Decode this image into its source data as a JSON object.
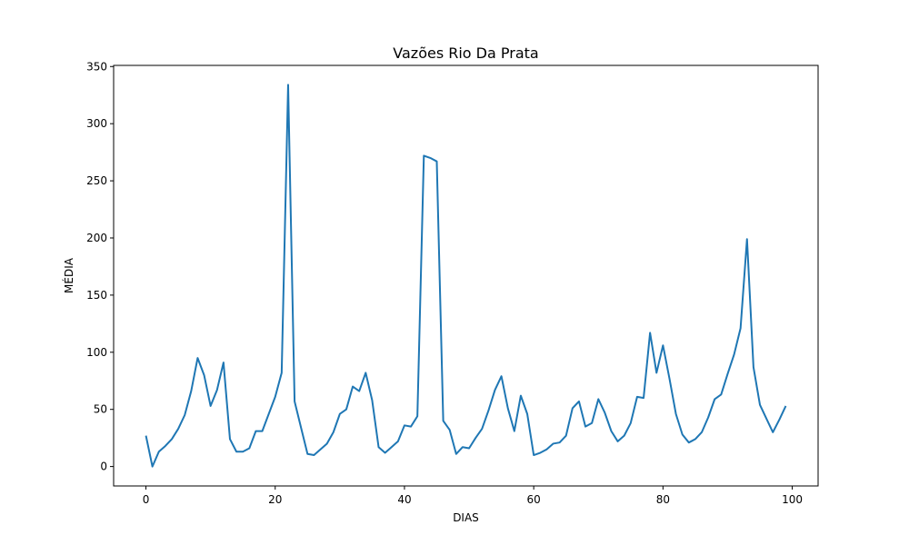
{
  "chart_data": {
    "type": "line",
    "title": "Vazões Rio Da Prata",
    "xlabel": "DIAS",
    "ylabel": "MÉDIA",
    "xlim": [
      -5,
      104
    ],
    "ylim": [
      -17,
      351
    ],
    "x_ticks": [
      0,
      20,
      40,
      60,
      80,
      100
    ],
    "y_ticks": [
      0,
      50,
      100,
      150,
      200,
      250,
      300,
      350
    ],
    "grid": false,
    "line_color": "#1f77b4",
    "series": [
      {
        "x": [
          0,
          1,
          2,
          3,
          4,
          5,
          6,
          7,
          8,
          9,
          10,
          11,
          12,
          13,
          14,
          15,
          16,
          17,
          18,
          19,
          20,
          21,
          22,
          23,
          24,
          25,
          26,
          27,
          28,
          29,
          30,
          31,
          32,
          33,
          34,
          35,
          36,
          37,
          38,
          39,
          40,
          41,
          42,
          43,
          44,
          45,
          46,
          47,
          48,
          49,
          50,
          51,
          52,
          53,
          54,
          55,
          56,
          57,
          58,
          59,
          60,
          61,
          62,
          63,
          64,
          65,
          66,
          67,
          68,
          69,
          70,
          71,
          72,
          73,
          74,
          75,
          76,
          77,
          78,
          79,
          80,
          81,
          82,
          83,
          84,
          85,
          86,
          87,
          88,
          89,
          90,
          91,
          92,
          93,
          94,
          95,
          96,
          97,
          98,
          99
        ],
        "values": [
          27,
          0,
          13,
          18,
          24,
          33,
          45,
          66,
          95,
          80,
          53,
          67,
          91,
          24,
          13,
          13,
          16,
          31,
          31,
          46,
          61,
          82,
          334,
          57,
          34,
          11,
          10,
          15,
          20,
          30,
          46,
          50,
          70,
          66,
          82,
          58,
          17,
          12,
          17,
          22,
          36,
          35,
          44,
          272,
          270,
          267,
          40,
          32,
          11,
          17,
          16,
          25,
          33,
          49,
          67,
          79,
          51,
          31,
          62,
          46,
          10,
          12,
          15,
          20,
          21,
          27,
          51,
          57,
          35,
          38,
          59,
          47,
          31,
          22,
          27,
          38,
          61,
          60,
          117,
          82,
          106,
          77,
          46,
          28,
          21,
          24,
          30,
          43,
          59,
          63,
          81,
          98,
          121,
          199,
          87,
          54,
          42,
          30,
          41,
          53
        ]
      }
    ]
  }
}
